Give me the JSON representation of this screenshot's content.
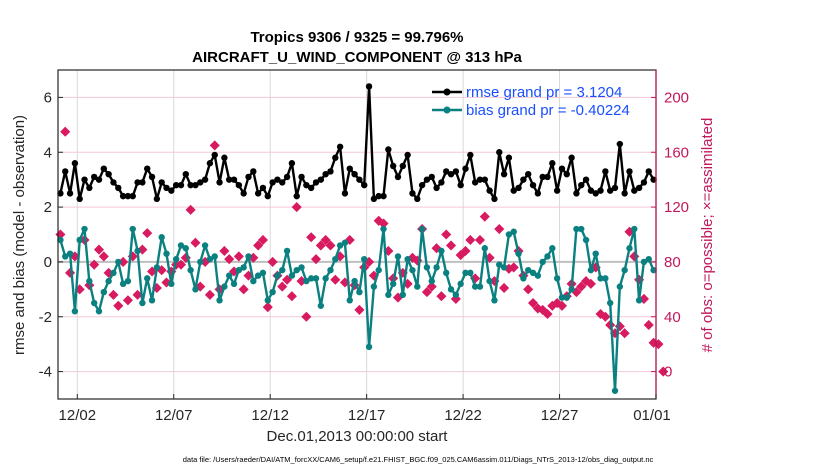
{
  "chart_data": {
    "type": "line",
    "title": "Tropics 9306 / 9325 = 99.796%",
    "subtitle": "AIRCRAFT_U_WIND_COMPONENT @ 313 hPa",
    "xlabel": "Dec.01,2013 00:00:00 start",
    "ylabel": "rmse and bias (model - observation)",
    "ylabel_right": "# of obs: o=possible; ×=assimilated",
    "footer": "data file: /Users/raeder/DAI/ATM_forcXX/CAM6_setup/f.e21.FHIST_BGC.f09_025.CAM6assim.011/Diags_NTrS_2013-12/obs_diag_output.nc",
    "xlim_days": [
      0,
      31
    ],
    "ylim": [
      -5,
      7
    ],
    "ylim_right": [
      -20,
      220
    ],
    "x_ticks": [
      {
        "day": 1,
        "label": "12/02"
      },
      {
        "day": 6,
        "label": "12/07"
      },
      {
        "day": 11,
        "label": "12/12"
      },
      {
        "day": 16,
        "label": "12/17"
      },
      {
        "day": 21,
        "label": "12/22"
      },
      {
        "day": 26,
        "label": "12/27"
      },
      {
        "day": 31,
        "label": "01/01"
      }
    ],
    "y_ticks": [
      -4,
      -2,
      0,
      2,
      4,
      6
    ],
    "y_ticks_right": [
      0,
      40,
      80,
      120,
      160,
      200
    ],
    "grid": true,
    "legend_position": "top-right",
    "colors": {
      "rmse": "#000000",
      "bias": "#0a8080",
      "count": "#d81b60",
      "zero_line": "#bfbfbf",
      "grid_x": "#d9d9d9",
      "grid_y": "#f2c9d9",
      "legend_text": "#1a4fff",
      "right_axis": "#c2185b"
    },
    "x_step_days": 0.25,
    "x_start_day": 0.125,
    "series": [
      {
        "name": "rmse grand pr = 3.1204",
        "key": "rmse",
        "values": [
          2.5,
          3.3,
          2.5,
          3.6,
          2.3,
          3.0,
          2.7,
          3.1,
          3.0,
          3.4,
          3.2,
          2.9,
          2.7,
          2.4,
          2.4,
          2.4,
          2.9,
          2.9,
          3.4,
          3.1,
          2.3,
          2.9,
          2.7,
          2.6,
          2.8,
          2.8,
          3.2,
          2.8,
          2.8,
          2.9,
          3.0,
          3.6,
          3.9,
          2.9,
          3.8,
          3.0,
          3.0,
          2.8,
          2.5,
          3.1,
          3.3,
          2.5,
          2.7,
          2.4,
          2.9,
          3.0,
          2.9,
          3.1,
          3.6,
          2.4,
          3.1,
          2.8,
          2.7,
          2.9,
          3.0,
          3.2,
          3.3,
          3.8,
          4.2,
          2.5,
          3.4,
          3.2,
          3.0,
          2.8,
          6.4,
          2.3,
          2.4,
          2.4,
          4.1,
          3.5,
          3.1,
          3.5,
          3.9,
          2.5,
          2.3,
          2.8,
          3.0,
          3.1,
          2.7,
          2.9,
          3.3,
          3.2,
          3.3,
          2.8,
          3.4,
          3.9,
          2.9,
          3.0,
          3.0,
          2.6,
          2.3,
          4.0,
          3.2,
          3.8,
          2.6,
          2.7,
          3.0,
          3.2,
          2.8,
          2.5,
          3.1,
          3.1,
          3.6,
          2.6,
          3.4,
          3.2,
          3.8,
          2.5,
          2.8,
          3.0,
          2.6,
          2.5,
          2.6,
          3.3,
          2.6,
          2.7,
          4.3,
          2.5,
          3.3,
          2.6,
          2.7,
          2.9,
          3.3,
          3.0
        ]
      },
      {
        "name": "bias grand pr = -0.40224",
        "key": "bias",
        "values": [
          0.8,
          0.2,
          0.3,
          -1.8,
          0.8,
          1.2,
          -0.7,
          -1.5,
          -1.8,
          -1.1,
          -0.7,
          -0.4,
          0.0,
          -0.8,
          -0.7,
          1.2,
          0.4,
          -1.5,
          -0.6,
          -1.4,
          -0.2,
          0.9,
          0.3,
          -0.8,
          0.1,
          0.6,
          0.5,
          -0.3,
          -1.0,
          0.0,
          0.6,
          0.1,
          0.2,
          -1.4,
          -0.9,
          -0.5,
          -0.8,
          -0.3,
          -0.2,
          0.2,
          -0.7,
          -0.5,
          -0.4,
          -1.4,
          -1.1,
          -0.5,
          -0.3,
          0.4,
          -0.5,
          -0.3,
          -0.2,
          -0.7,
          -0.6,
          -0.6,
          -1.6,
          -0.6,
          -0.3,
          0.1,
          0.6,
          0.7,
          -1.4,
          -0.7,
          -1.1,
          0.1,
          -3.1,
          -0.9,
          -0.3,
          1.2,
          -1.2,
          -0.8,
          0.2,
          -1.2,
          0.1,
          -0.3,
          -0.9,
          1.2,
          -0.2,
          -0.7,
          -0.2,
          0.4,
          -0.4,
          -1.0,
          -1.2,
          -0.8,
          -0.4,
          -0.4,
          -0.9,
          -0.9,
          0.5,
          -0.7,
          -1.4,
          -0.1,
          -0.2,
          1.0,
          1.1,
          0.3,
          -0.6,
          -0.3,
          -0.4,
          -0.5,
          0.0,
          0.2,
          0.5,
          -0.6,
          -1.3,
          -1.3,
          -1.0,
          1.2,
          1.2,
          0.8,
          -0.3,
          0.3,
          -0.6,
          -0.6,
          -1.5,
          -4.7,
          -0.9,
          -0.3,
          0.5,
          1.2,
          -1.4,
          0.0,
          0.1,
          -0.3
        ]
      },
      {
        "name": "# of obs assimilated",
        "key": "count",
        "axis": "right",
        "values": [
          100,
          175,
          72,
          84,
          60,
          96,
          63,
          78,
          89,
          84,
          72,
          56,
          48,
          80,
          52,
          84,
          56,
          89,
          101,
          73,
          61,
          74,
          65,
          73,
          78,
          78,
          83,
          118,
          94,
          62,
          80,
          56,
          165,
          60,
          88,
          82,
          73,
          84,
          60,
          70,
          83,
          92,
          96,
          47,
          80,
          70,
          62,
          67,
          55,
          120,
          66,
          40,
          98,
          82,
          92,
          96,
          92,
          67,
          84,
          65,
          96,
          63,
          45,
          76,
          80,
          70,
          110,
          108,
          88,
          68,
          54,
          72,
          64,
          83,
          81,
          104,
          58,
          62,
          90,
          55,
          100,
          92,
          53,
          85,
          88,
          96,
          68,
          96,
          113,
          83,
          66,
          104,
          61,
          75,
          76,
          88,
          70,
          60,
          50,
          46,
          45,
          42,
          48,
          50,
          48,
          55,
          64,
          58,
          62,
          66,
          64,
          76,
          42,
          40,
          34,
          28,
          33,
          28,
          102,
          84,
          67,
          53,
          34,
          21,
          20,
          0
        ]
      }
    ]
  }
}
